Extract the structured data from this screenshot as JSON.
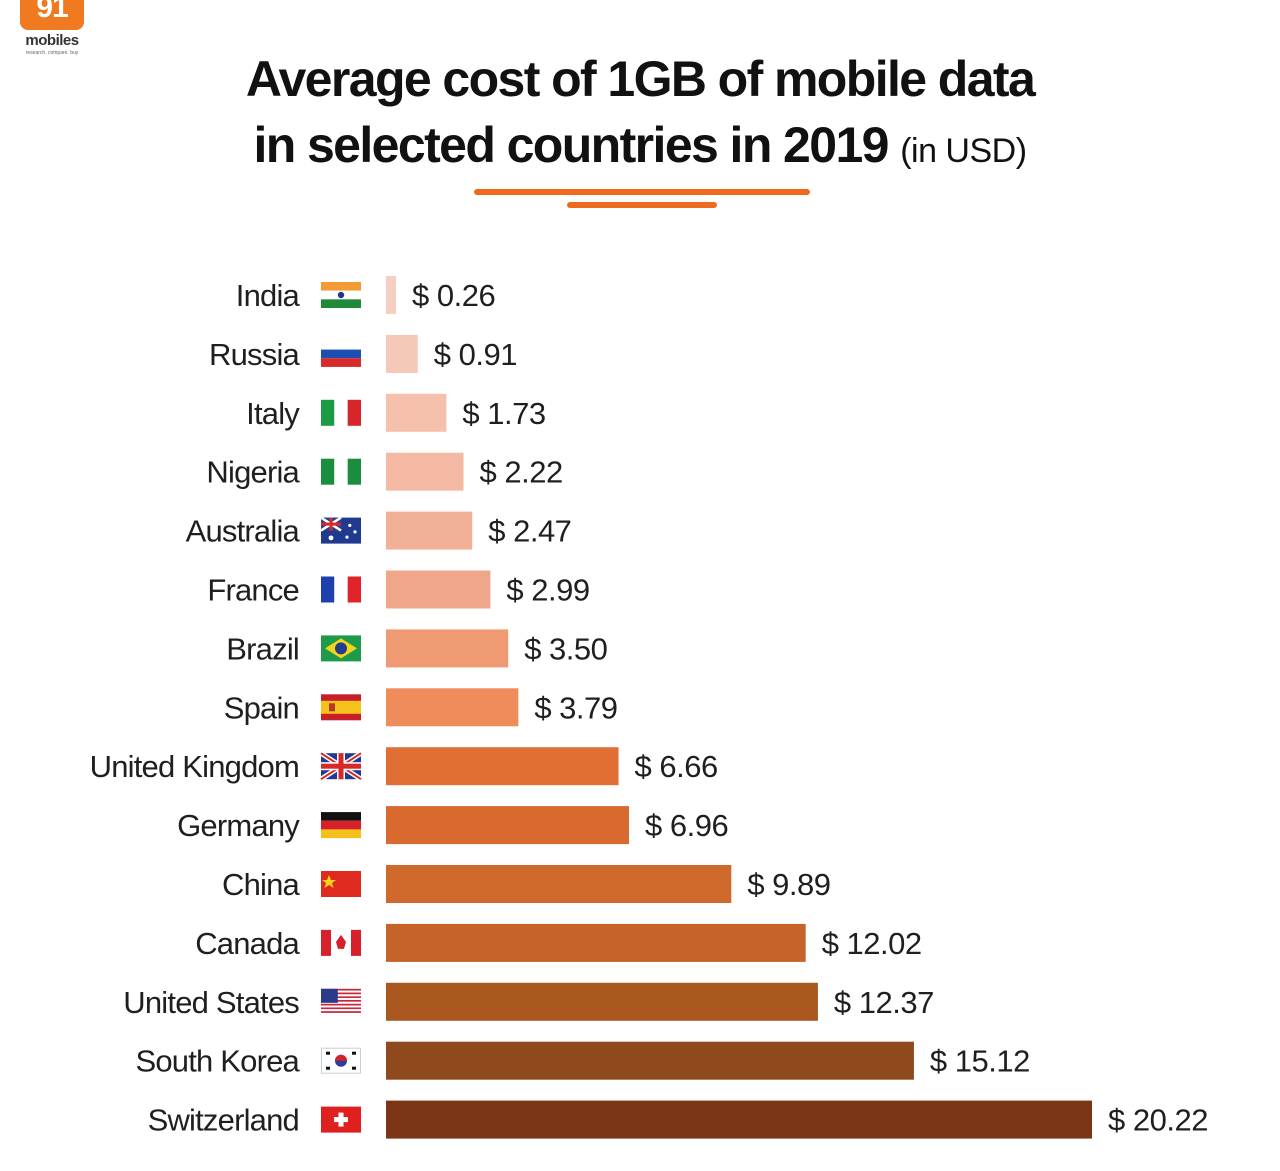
{
  "logo": {
    "badge": "91",
    "word": "mobiles",
    "tagline": "research. compare. buy"
  },
  "title": {
    "line1": "Average cost of 1GB of mobile data",
    "line2": "in selected countries in 2019",
    "unit": "(in USD)"
  },
  "chart_data": {
    "type": "bar",
    "orientation": "horizontal",
    "title": "Average cost of 1GB of mobile data in selected countries in 2019 (in USD)",
    "xlabel": "",
    "ylabel": "",
    "xlim": [
      0,
      20.22
    ],
    "grid": false,
    "categories": [
      "India",
      "Russia",
      "Italy",
      "Nigeria",
      "Australia",
      "France",
      "Brazil",
      "Spain",
      "United Kingdom",
      "Germany",
      "China",
      "Canada",
      "United States",
      "South Korea",
      "Switzerland"
    ],
    "values": [
      0.26,
      0.91,
      1.73,
      2.22,
      2.47,
      2.99,
      3.5,
      3.79,
      6.66,
      6.96,
      9.89,
      12.02,
      12.37,
      15.12,
      20.22
    ],
    "labels": [
      "$ 0.26",
      "$ 0.91",
      "$ 1.73",
      "$ 2.22",
      "$ 2.47",
      "$ 2.99",
      "$ 3.50",
      "$ 3.79",
      "$ 6.66",
      "$ 6.96",
      "$ 9.89",
      "$ 12.02",
      "$ 12.37",
      "$ 15.12",
      "$ 20.22"
    ],
    "colors": [
      "#f6cfc3",
      "#f6c8b8",
      "#f5c1ad",
      "#f4b9a2",
      "#f2b097",
      "#f0a68a",
      "#ef9a73",
      "#ee8c5c",
      "#e16f34",
      "#d96a2f",
      "#cf6a2c",
      "#c56328",
      "#a9561f",
      "#8e4a1d",
      "#7a3514"
    ],
    "flags": [
      "india-flag",
      "russia-flag",
      "italy-flag",
      "nigeria-flag",
      "australia-flag",
      "france-flag",
      "brazil-flag",
      "spain-flag",
      "uk-flag",
      "germany-flag",
      "china-flag",
      "canada-flag",
      "usa-flag",
      "south-korea-flag",
      "switzerland-flag"
    ]
  }
}
